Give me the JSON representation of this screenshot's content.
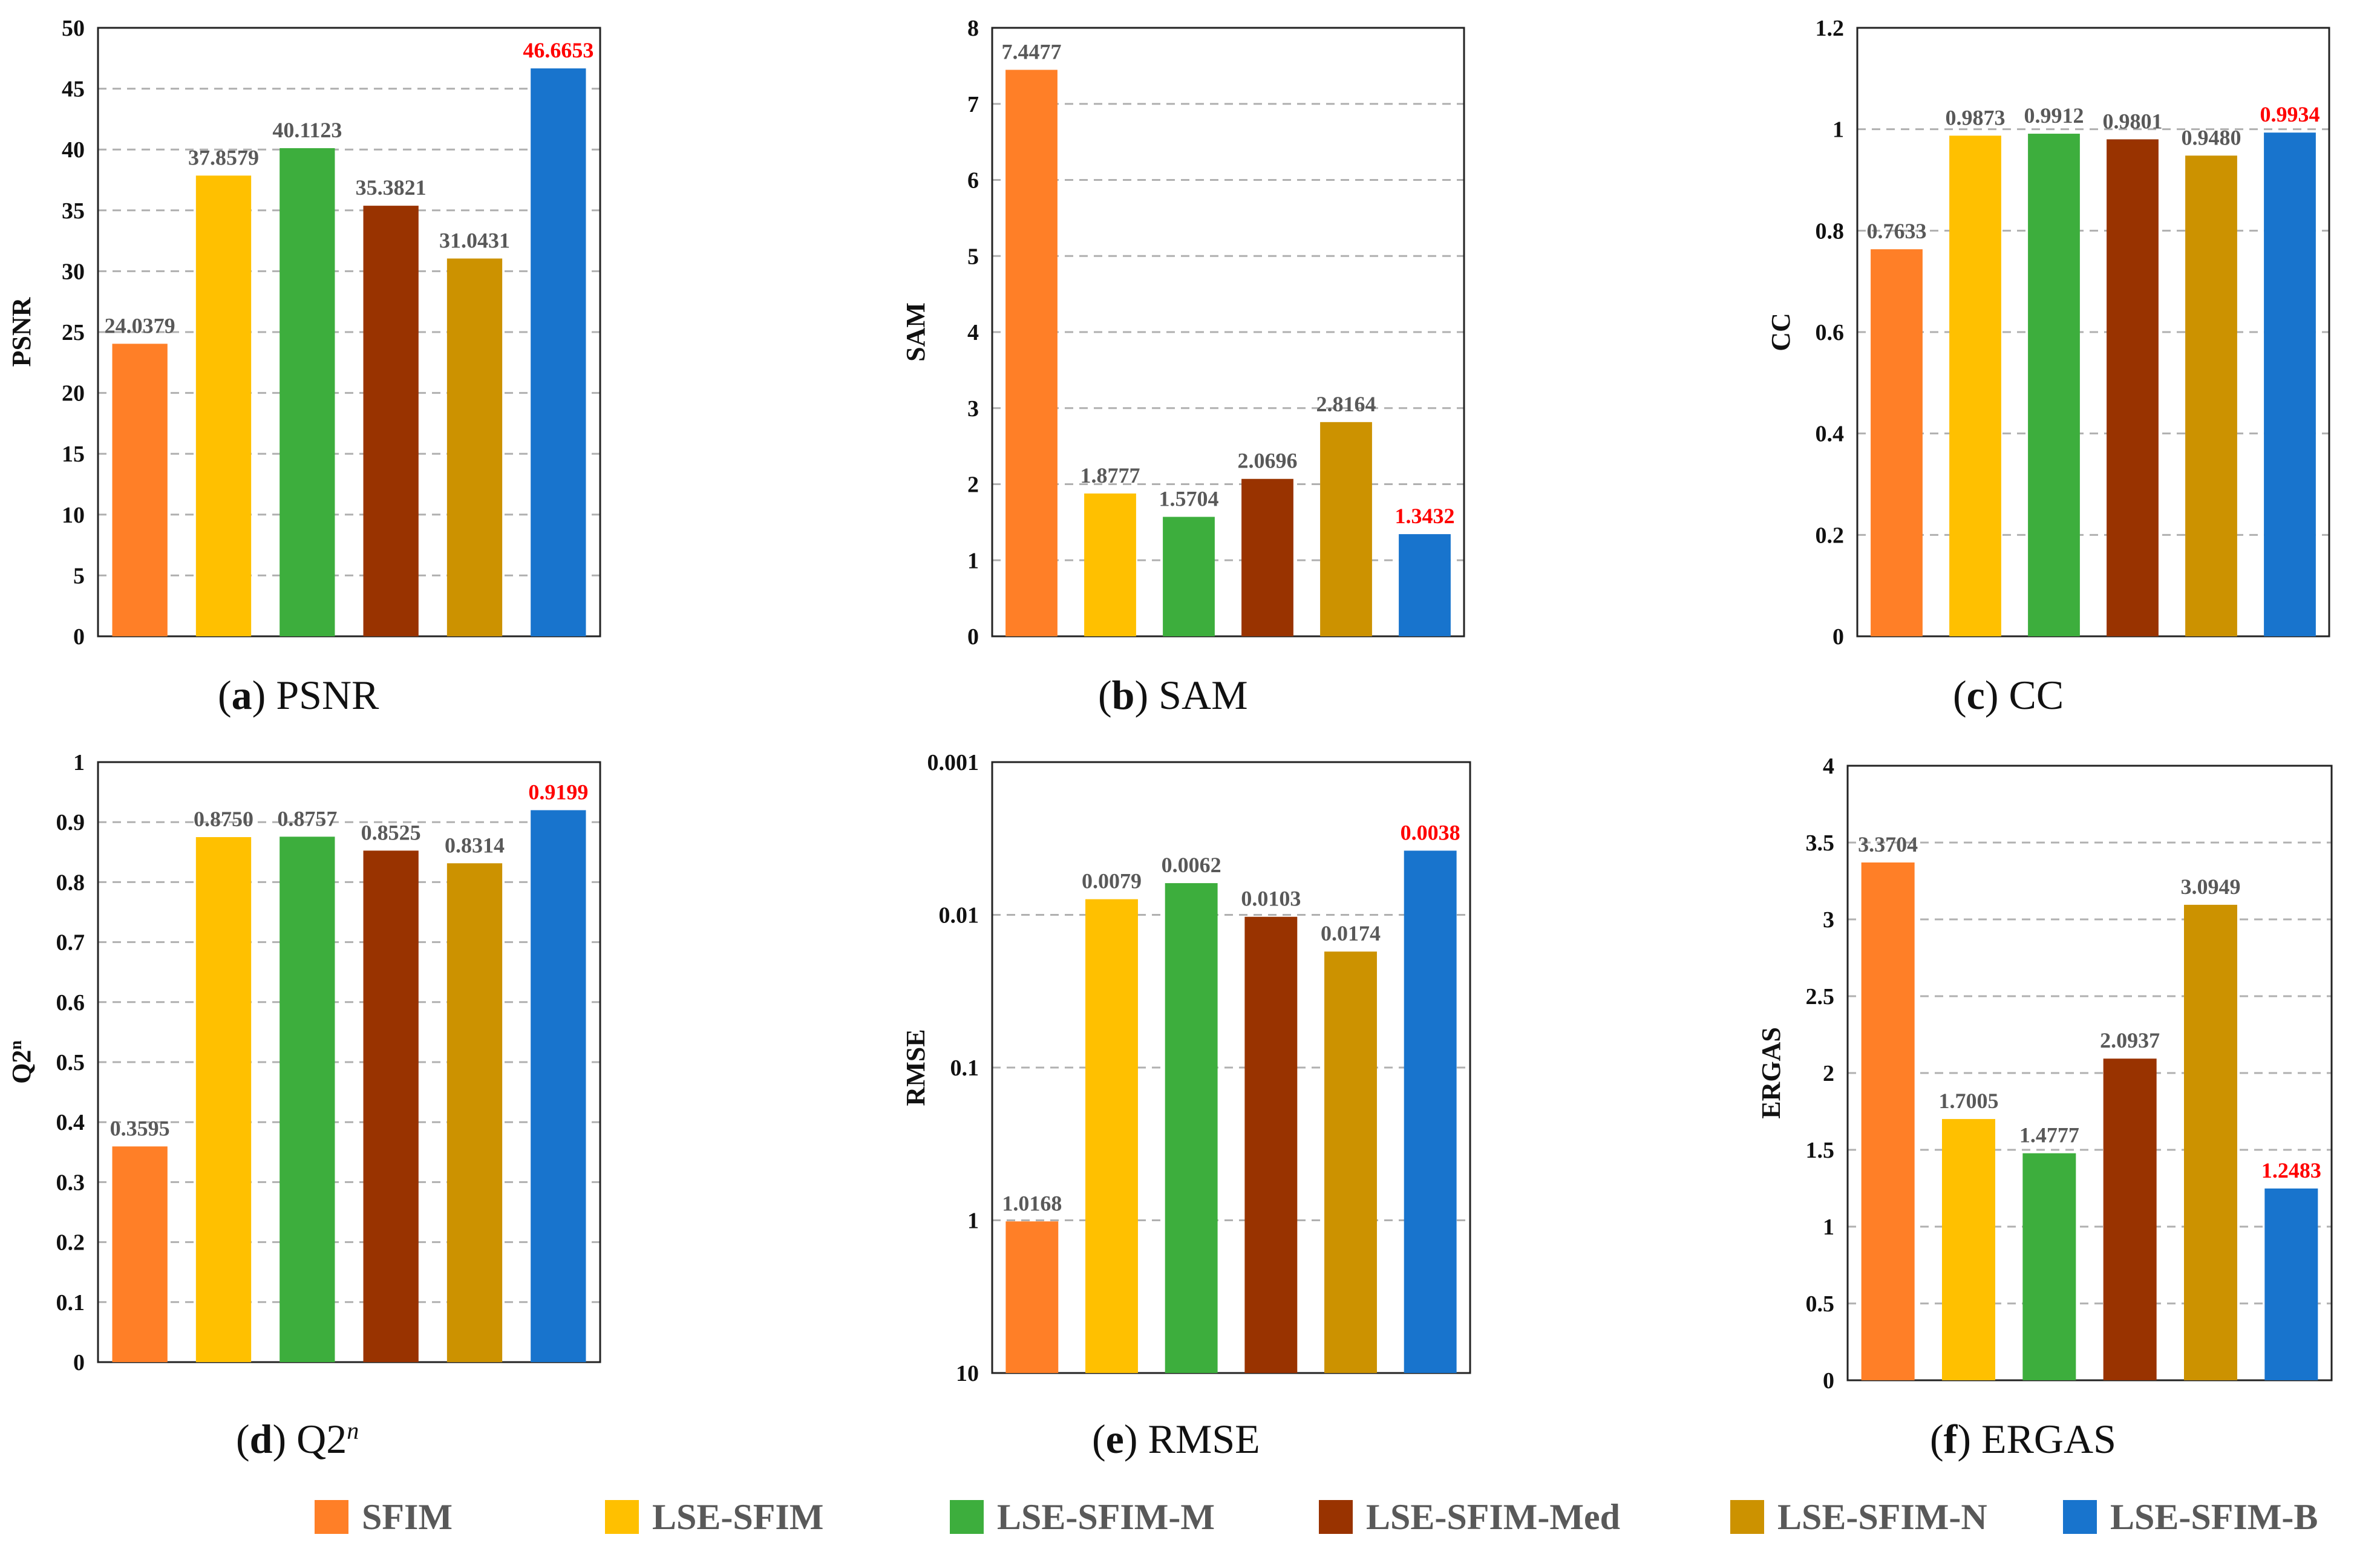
{
  "colors": {
    "SFIM": "#FF7F27",
    "LSE-SFIM": "#FFC000",
    "LSE-SFIM-M": "#3DAE3D",
    "LSE-SFIM-Med": "#993300",
    "LSE-SFIM-N": "#CC9200",
    "LSE-SFIM-B": "#1874CD",
    "label": "#595959",
    "best_label": "#FF0000"
  },
  "legend": [
    "SFIM",
    "LSE-SFIM",
    "LSE-SFIM-M",
    "LSE-SFIM-Med",
    "LSE-SFIM-N",
    "LSE-SFIM-B"
  ],
  "captions": [
    {
      "letter": "a",
      "text": "PSNR",
      "sup": ""
    },
    {
      "letter": "b",
      "text": "SAM",
      "sup": ""
    },
    {
      "letter": "c",
      "text": "CC",
      "sup": ""
    },
    {
      "letter": "d",
      "text": "Q2",
      "sup": "n"
    },
    {
      "letter": "e",
      "text": "RMSE",
      "sup": ""
    },
    {
      "letter": "f",
      "text": "ERGAS",
      "sup": ""
    }
  ],
  "chart_data": [
    {
      "type": "bar",
      "title": "(a) PSNR",
      "ylabel": "PSNR",
      "ylabel_sup": "",
      "categories": [
        "SFIM",
        "LSE-SFIM",
        "LSE-SFIM-M",
        "LSE-SFIM-Med",
        "LSE-SFIM-N",
        "LSE-SFIM-B"
      ],
      "values": [
        24.0379,
        37.8579,
        40.1123,
        35.3821,
        31.0431,
        46.6653
      ],
      "labels": [
        "24.0379",
        "37.8579",
        "40.1123",
        "35.3821",
        "31.0431",
        "46.6653"
      ],
      "best_index": 5,
      "scale": "linear",
      "ylim": [
        0,
        50
      ],
      "yticks": [
        0,
        5,
        10,
        15,
        20,
        25,
        30,
        35,
        40,
        45,
        50
      ],
      "ytick_labels": [
        "0",
        "5",
        "10",
        "15",
        "20",
        "25",
        "30",
        "35",
        "40",
        "45",
        "50"
      ],
      "grid": true
    },
    {
      "type": "bar",
      "title": "(b) SAM",
      "ylabel": "SAM",
      "ylabel_sup": "",
      "categories": [
        "SFIM",
        "LSE-SFIM",
        "LSE-SFIM-M",
        "LSE-SFIM-Med",
        "LSE-SFIM-N",
        "LSE-SFIM-B"
      ],
      "values": [
        7.4477,
        1.8777,
        1.5704,
        2.0696,
        2.8164,
        1.3432
      ],
      "labels": [
        "7.4477",
        "1.8777",
        "1.5704",
        "2.0696",
        "2.8164",
        "1.3432"
      ],
      "best_index": 5,
      "scale": "linear",
      "ylim": [
        0,
        8
      ],
      "yticks": [
        0,
        1,
        2,
        3,
        4,
        5,
        6,
        7,
        8
      ],
      "ytick_labels": [
        "0",
        "1",
        "2",
        "3",
        "4",
        "5",
        "6",
        "7",
        "8"
      ],
      "grid": true
    },
    {
      "type": "bar",
      "title": "(c) CC",
      "ylabel": "CC",
      "ylabel_sup": "",
      "categories": [
        "SFIM",
        "LSE-SFIM",
        "LSE-SFIM-M",
        "LSE-SFIM-Med",
        "LSE-SFIM-N",
        "LSE-SFIM-B"
      ],
      "values": [
        0.7633,
        0.9873,
        0.9912,
        0.9801,
        0.948,
        0.9934
      ],
      "labels": [
        "0.7633",
        "0.9873",
        "0.9912",
        "0.9801",
        "0.9480",
        "0.9934"
      ],
      "best_index": 5,
      "scale": "linear",
      "ylim": [
        0,
        1.2
      ],
      "yticks": [
        0,
        0.2,
        0.4,
        0.6,
        0.8,
        1,
        1.2
      ],
      "ytick_labels": [
        "0",
        "0.2",
        "0.4",
        "0.6",
        "0.8",
        "1",
        "1.2"
      ],
      "grid": true
    },
    {
      "type": "bar",
      "title": "(d) Q2n",
      "ylabel": "Q2",
      "ylabel_sup": "n",
      "categories": [
        "SFIM",
        "LSE-SFIM",
        "LSE-SFIM-M",
        "LSE-SFIM-Med",
        "LSE-SFIM-N",
        "LSE-SFIM-B"
      ],
      "values": [
        0.3595,
        0.875,
        0.8757,
        0.8525,
        0.8314,
        0.9199
      ],
      "labels": [
        "0.3595",
        "0.8750",
        "0.8757",
        "0.8525",
        "0.8314",
        "0.9199"
      ],
      "best_index": 5,
      "scale": "linear",
      "ylim": [
        0,
        1
      ],
      "yticks": [
        0,
        0.1,
        0.2,
        0.3,
        0.4,
        0.5,
        0.6,
        0.7,
        0.8,
        0.9,
        1
      ],
      "ytick_labels": [
        "0",
        "0.1",
        "0.2",
        "0.3",
        "0.4",
        "0.5",
        "0.6",
        "0.7",
        "0.8",
        "0.9",
        "1"
      ],
      "grid": true
    },
    {
      "type": "bar",
      "title": "(e) RMSE",
      "ylabel": "RMSE",
      "ylabel_sup": "",
      "categories": [
        "SFIM",
        "LSE-SFIM",
        "LSE-SFIM-M",
        "LSE-SFIM-Med",
        "LSE-SFIM-N",
        "LSE-SFIM-B"
      ],
      "values": [
        1.0168,
        0.0079,
        0.0062,
        0.0103,
        0.0174,
        0.0038
      ],
      "labels": [
        "1.0168",
        "0.0079",
        "0.0062",
        "0.0103",
        "0.0174",
        "0.0038"
      ],
      "best_index": 5,
      "scale": "log-reversed",
      "ylim": [
        10,
        0.001
      ],
      "yticks": [
        10,
        1,
        0.1,
        0.01,
        0.001
      ],
      "ytick_labels": [
        "10",
        "1",
        "0.1",
        "0.01",
        "0.001"
      ],
      "grid": true
    },
    {
      "type": "bar",
      "title": "(f) ERGAS",
      "ylabel": "ERGAS",
      "ylabel_sup": "",
      "categories": [
        "SFIM",
        "LSE-SFIM",
        "LSE-SFIM-M",
        "LSE-SFIM-Med",
        "LSE-SFIM-N",
        "LSE-SFIM-B"
      ],
      "values": [
        3.3704,
        1.7005,
        1.4777,
        2.0937,
        3.0949,
        1.2483
      ],
      "labels": [
        "3.3704",
        "1.7005",
        "1.4777",
        "2.0937",
        "3.0949",
        "1.2483"
      ],
      "best_index": 5,
      "scale": "linear",
      "ylim": [
        0,
        4
      ],
      "yticks": [
        0,
        0.5,
        1,
        1.5,
        2,
        2.5,
        3,
        3.5,
        4
      ],
      "ytick_labels": [
        "0",
        "0.5",
        "1",
        "1.5",
        "2",
        "2.5",
        "3",
        "3.5",
        "4"
      ],
      "grid": true
    }
  ]
}
